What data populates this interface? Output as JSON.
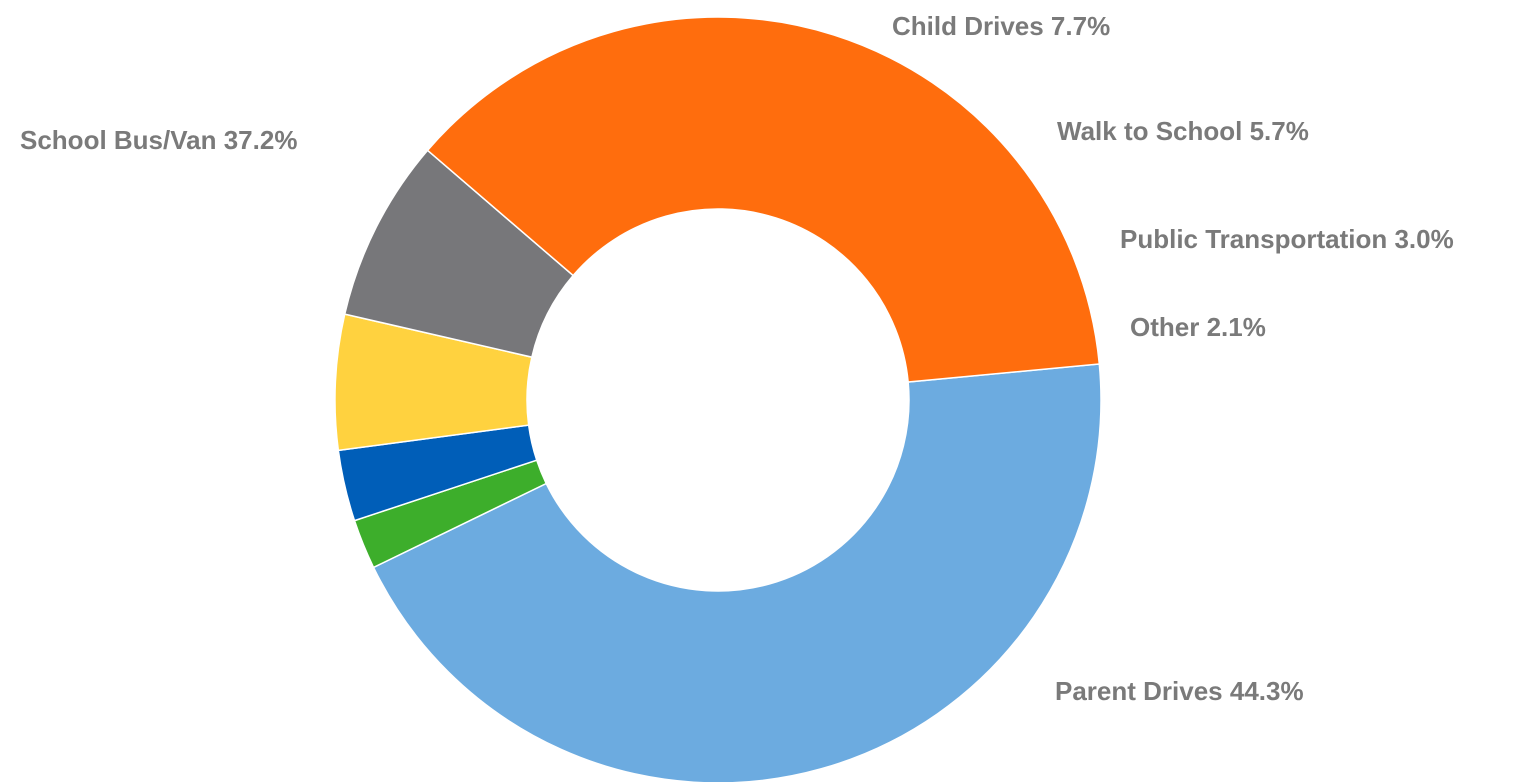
{
  "chart_data": {
    "type": "pie",
    "donut": true,
    "title": "",
    "slices": [
      {
        "label": "Parent Drives",
        "value": 44.3,
        "display": "Parent Drives 44.3%",
        "color": "#6CABE0"
      },
      {
        "label": "Other",
        "value": 2.1,
        "display": "Other 2.1%",
        "color": "#3DAE2B"
      },
      {
        "label": "Public Transportation",
        "value": 3.0,
        "display": "Public Transportation 3.0%",
        "color": "#005EB8"
      },
      {
        "label": "Walk to School",
        "value": 5.7,
        "display": "Walk to School 5.7%",
        "color": "#FFD23F"
      },
      {
        "label": "Child Drives",
        "value": 7.7,
        "display": "Child Drives 7.7%",
        "color": "#77777A"
      },
      {
        "label": "School Bus/Van",
        "value": 37.2,
        "display": "School Bus/Van 37.2%",
        "color": "#FF6D0D"
      }
    ],
    "legend": "none",
    "data_labels": "outside"
  }
}
